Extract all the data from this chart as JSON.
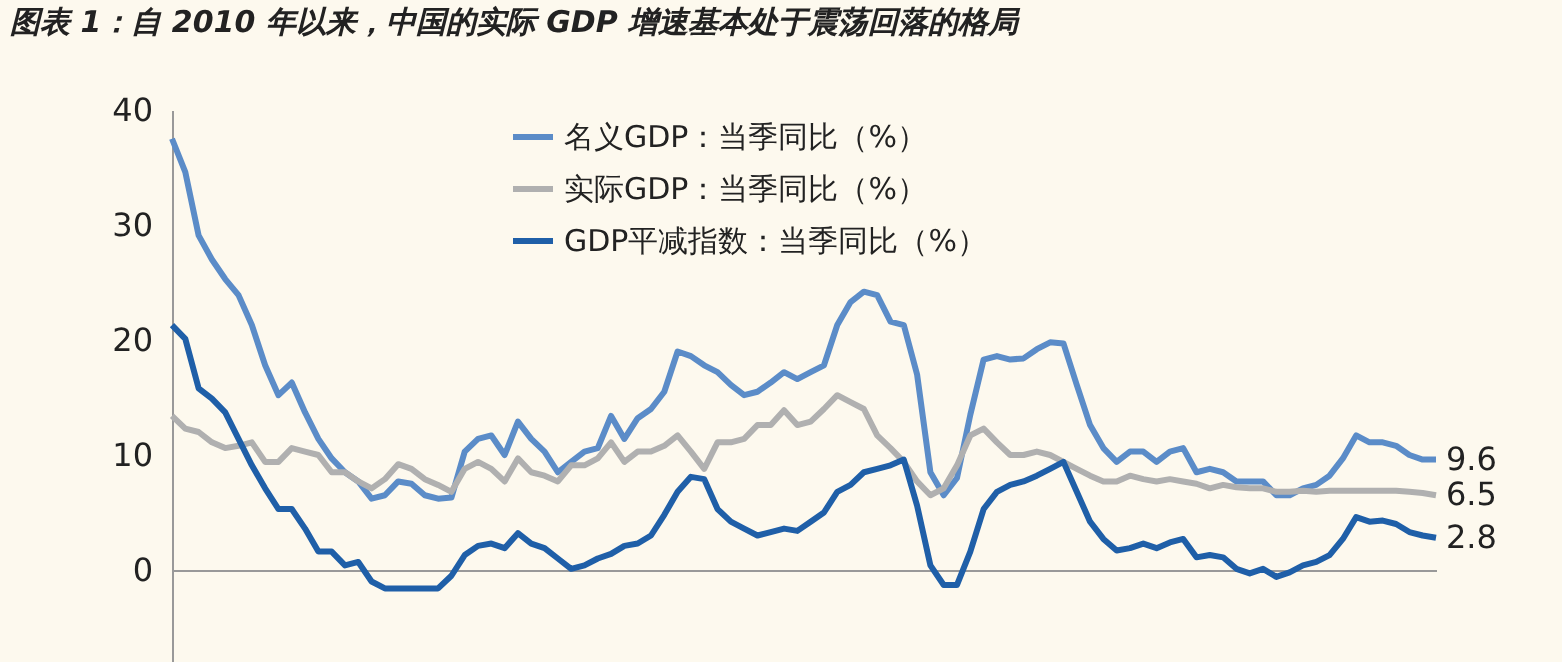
{
  "chart_data": {
    "type": "line",
    "title": "图表 1：自 2010 年以来，中国的实际 GDP 增速基本处于震荡回落的格局",
    "categories": [
      null,
      null,
      null,
      null,
      null,
      null,
      null,
      null,
      null,
      null,
      null,
      null,
      null,
      null,
      null,
      null,
      null,
      null,
      null,
      null,
      null,
      null,
      null,
      null,
      null,
      null,
      null,
      null,
      null,
      null,
      null,
      null,
      null,
      null,
      null,
      null,
      null,
      null,
      null,
      null,
      null,
      null,
      null,
      null,
      null,
      null,
      null,
      null,
      null,
      null,
      null,
      null,
      null,
      null,
      null,
      null,
      null,
      null,
      null,
      null,
      null,
      null,
      null,
      null,
      null,
      null,
      null,
      null,
      null,
      null,
      null,
      null,
      null,
      null,
      null,
      null,
      null,
      null,
      null,
      null,
      null,
      null,
      null,
      null,
      null,
      null,
      null,
      null,
      null,
      null,
      null,
      null,
      null,
      null,
      null,
      null
    ],
    "series": [
      {
        "name": "名义GDP：当季同比（%）",
        "color": "#5b8cc8",
        "values": [
          37.5,
          34.6,
          29.1,
          27,
          25.3,
          23.9,
          21.3,
          17.8,
          15.2,
          16.3,
          13.7,
          11.4,
          9.7,
          8.5,
          7.7,
          6.2,
          6.5,
          7.7,
          7.5,
          6.5,
          6.2,
          6.3,
          10.3,
          11.4,
          11.7,
          10.0,
          12.9,
          11.4,
          10.3,
          8.5,
          9.4,
          10.3,
          10.6,
          13.4,
          11.4,
          13.2,
          14.0,
          15.5,
          19.0,
          18.6,
          17.8,
          17.2,
          16.1,
          15.2,
          15.5,
          16.3,
          17.2,
          16.6,
          17.2,
          17.8,
          21.3,
          23.3,
          24.2,
          23.9,
          21.6,
          21.3,
          17.0,
          8.5,
          6.5,
          8.0,
          13.5,
          18.3,
          18.6,
          18.3,
          18.4,
          19.2,
          19.8,
          19.7,
          16.1,
          12.6,
          10.6,
          9.4,
          10.3,
          10.3,
          9.4,
          10.3,
          10.6,
          8.5,
          8.8,
          8.5,
          7.7,
          7.7,
          7.7,
          6.5,
          6.5,
          7.1,
          7.4,
          8.2,
          9.7,
          11.7,
          11.1,
          11.1,
          10.8,
          10.0,
          9.6,
          9.6
        ],
        "value_labels": [
          null,
          null,
          null,
          null,
          null,
          null,
          null,
          null,
          null,
          null,
          null,
          null,
          null,
          null,
          null,
          null,
          null,
          null,
          null,
          null,
          null,
          null,
          null,
          null,
          null,
          null,
          null,
          null,
          null,
          null,
          null,
          null,
          null,
          null,
          null,
          null,
          null,
          null,
          null,
          null,
          null,
          null,
          null,
          null,
          null,
          null,
          null,
          null,
          null,
          null,
          null,
          null,
          null,
          null,
          null,
          null,
          null,
          null,
          null,
          null,
          null,
          null,
          null,
          null,
          null,
          null,
          null,
          null,
          null,
          null,
          null,
          null,
          null,
          null,
          null,
          null,
          null,
          null,
          null,
          null,
          null,
          null,
          null,
          null,
          null,
          null,
          null,
          null,
          null,
          null,
          null,
          null,
          null,
          null,
          null,
          "9.6"
        ]
      },
      {
        "name": "实际GDP：当季同比（%）",
        "color": "#b0b0b0",
        "values": [
          13.4,
          12.3,
          12.0,
          11.1,
          10.6,
          10.8,
          11.1,
          9.4,
          9.4,
          10.6,
          10.3,
          10.0,
          8.5,
          8.5,
          7.7,
          7.1,
          7.9,
          9.2,
          8.8,
          7.9,
          7.4,
          6.8,
          8.8,
          9.4,
          8.8,
          7.7,
          9.7,
          8.5,
          8.2,
          7.7,
          9.1,
          9.1,
          9.7,
          11.1,
          9.4,
          10.3,
          10.3,
          10.8,
          11.7,
          10.3,
          8.8,
          11.1,
          11.1,
          11.4,
          12.6,
          12.6,
          13.9,
          12.6,
          12.9,
          14.0,
          15.2,
          14.6,
          14.0,
          11.7,
          10.6,
          9.4,
          7.7,
          6.5,
          7.1,
          9.1,
          11.7,
          12.3,
          11.1,
          10.0,
          10.0,
          10.3,
          10.0,
          9.4,
          8.8,
          8.2,
          7.7,
          7.7,
          8.2,
          7.9,
          7.7,
          7.9,
          7.7,
          7.5,
          7.1,
          7.4,
          7.2,
          7.1,
          7.1,
          6.8,
          6.8,
          6.9,
          6.8,
          6.9,
          6.9,
          6.9,
          6.9,
          6.9,
          6.9,
          6.8,
          6.7,
          6.5
        ],
        "value_labels": [
          null,
          null,
          null,
          null,
          null,
          null,
          null,
          null,
          null,
          null,
          null,
          null,
          null,
          null,
          null,
          null,
          null,
          null,
          null,
          null,
          null,
          null,
          null,
          null,
          null,
          null,
          null,
          null,
          null,
          null,
          null,
          null,
          null,
          null,
          null,
          null,
          null,
          null,
          null,
          null,
          null,
          null,
          null,
          null,
          null,
          null,
          null,
          null,
          null,
          null,
          null,
          null,
          null,
          null,
          null,
          null,
          null,
          null,
          null,
          null,
          null,
          null,
          null,
          null,
          null,
          null,
          null,
          null,
          null,
          null,
          null,
          null,
          null,
          null,
          null,
          null,
          null,
          null,
          null,
          null,
          null,
          null,
          null,
          null,
          null,
          null,
          null,
          null,
          null,
          null,
          null,
          null,
          null,
          null,
          null,
          "6.5"
        ]
      },
      {
        "name": "GDP平减指数：当季同比（%）",
        "color": "#1f5fa8",
        "values": [
          21.3,
          20.1,
          15.8,
          14.9,
          13.7,
          11.4,
          9.1,
          7.1,
          5.3,
          5.3,
          3.6,
          1.6,
          1.6,
          0.4,
          0.7,
          -1.0,
          -1.6,
          -1.6,
          -1.6,
          -1.6,
          -1.6,
          -0.5,
          1.3,
          2.1,
          2.3,
          1.9,
          3.2,
          2.3,
          1.9,
          1.0,
          0.1,
          0.4,
          1.0,
          1.4,
          2.1,
          2.3,
          3.0,
          4.8,
          6.8,
          8.1,
          7.9,
          5.3,
          4.2,
          3.6,
          3.0,
          3.3,
          3.6,
          3.4,
          4.2,
          5.0,
          6.8,
          7.4,
          8.5,
          8.8,
          9.1,
          9.6,
          5.6,
          0.4,
          -1.3,
          -1.3,
          1.6,
          5.3,
          6.8,
          7.4,
          7.7,
          8.2,
          8.8,
          9.4,
          6.8,
          4.2,
          2.7,
          1.7,
          1.9,
          2.3,
          1.9,
          2.4,
          2.7,
          1.1,
          1.3,
          1.1,
          0.1,
          -0.3,
          0.1,
          -0.6,
          -0.2,
          0.4,
          0.7,
          1.3,
          2.7,
          4.6,
          4.2,
          4.3,
          4.0,
          3.3,
          3.0,
          2.8
        ],
        "value_labels": [
          null,
          null,
          null,
          null,
          null,
          null,
          null,
          null,
          null,
          null,
          null,
          null,
          null,
          null,
          null,
          null,
          null,
          null,
          null,
          null,
          null,
          null,
          null,
          null,
          null,
          null,
          null,
          null,
          null,
          null,
          null,
          null,
          null,
          null,
          null,
          null,
          null,
          null,
          null,
          null,
          null,
          null,
          null,
          null,
          null,
          null,
          null,
          null,
          null,
          null,
          null,
          null,
          null,
          null,
          null,
          null,
          null,
          null,
          null,
          null,
          null,
          null,
          null,
          null,
          null,
          null,
          null,
          null,
          null,
          null,
          null,
          null,
          null,
          null,
          null,
          null,
          null,
          null,
          null,
          null,
          null,
          null,
          null,
          null,
          null,
          null,
          null,
          null,
          null,
          null,
          null,
          null,
          null,
          null,
          null,
          "2.8"
        ]
      }
    ],
    "ylim": [
      -8,
      40
    ],
    "yticks": [
      0,
      10,
      20,
      30,
      40
    ],
    "legend": "top",
    "tick_labels": "y"
  }
}
